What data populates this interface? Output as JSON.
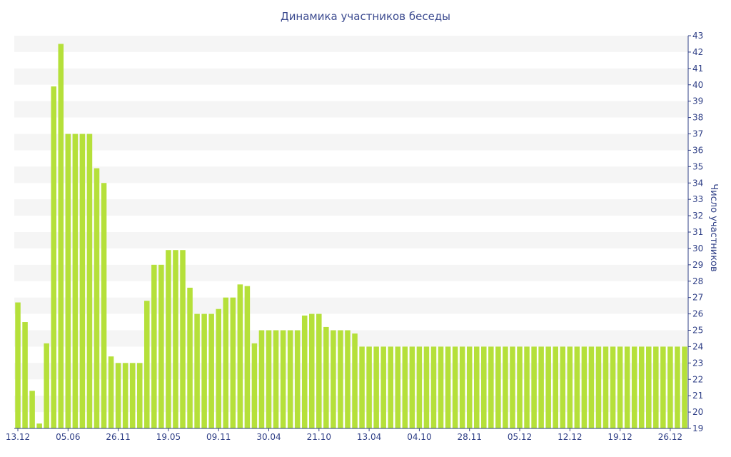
{
  "chart_data": {
    "type": "bar",
    "title": "Динамика участников беседы",
    "ylabel": "Число участников",
    "xlabel": "",
    "ylim": [
      19,
      43
    ],
    "yticks": [
      19,
      20,
      21,
      22,
      23,
      24,
      25,
      26,
      27,
      28,
      29,
      30,
      31,
      32,
      33,
      34,
      35,
      36,
      37,
      38,
      39,
      40,
      41,
      42,
      43
    ],
    "y_axis_position": "right",
    "grid": "alternating horizontal bands",
    "bar_color": "#b5e03a",
    "band_color": "#f5f5f5",
    "text_color": "#2f3f86",
    "xtick_labels": [
      "13.12",
      "05.06",
      "26.11",
      "19.05",
      "09.11",
      "30.04",
      "21.10",
      "13.04",
      "04.10",
      "28.11",
      "05.12",
      "12.12",
      "19.12",
      "26.12"
    ],
    "xtick_category_index": [
      0,
      7,
      14,
      21,
      28,
      35,
      42,
      49,
      56,
      63,
      70,
      77,
      84,
      91
    ],
    "values": [
      26.7,
      25.5,
      21.3,
      19.3,
      24.2,
      39.9,
      42.5,
      37,
      37,
      37,
      37,
      34.9,
      34,
      23.4,
      23,
      23,
      23,
      23,
      26.8,
      29,
      29,
      29.9,
      29.9,
      29.9,
      27.6,
      26,
      26,
      26,
      26.3,
      27,
      27,
      27.8,
      27.7,
      24.2,
      25,
      25,
      25,
      25,
      25,
      25,
      25.9,
      26,
      26,
      25.2,
      25,
      25,
      25,
      24.8,
      24,
      24,
      24,
      24,
      24,
      24,
      24,
      24,
      24,
      24,
      24,
      24,
      24,
      24,
      24,
      24,
      24,
      24,
      24,
      24,
      24,
      24,
      24,
      24,
      24,
      24,
      24,
      24,
      24,
      24,
      24,
      24,
      24,
      24,
      24,
      24,
      24,
      24,
      24,
      24,
      24,
      24,
      24,
      24,
      24,
      24
    ]
  }
}
